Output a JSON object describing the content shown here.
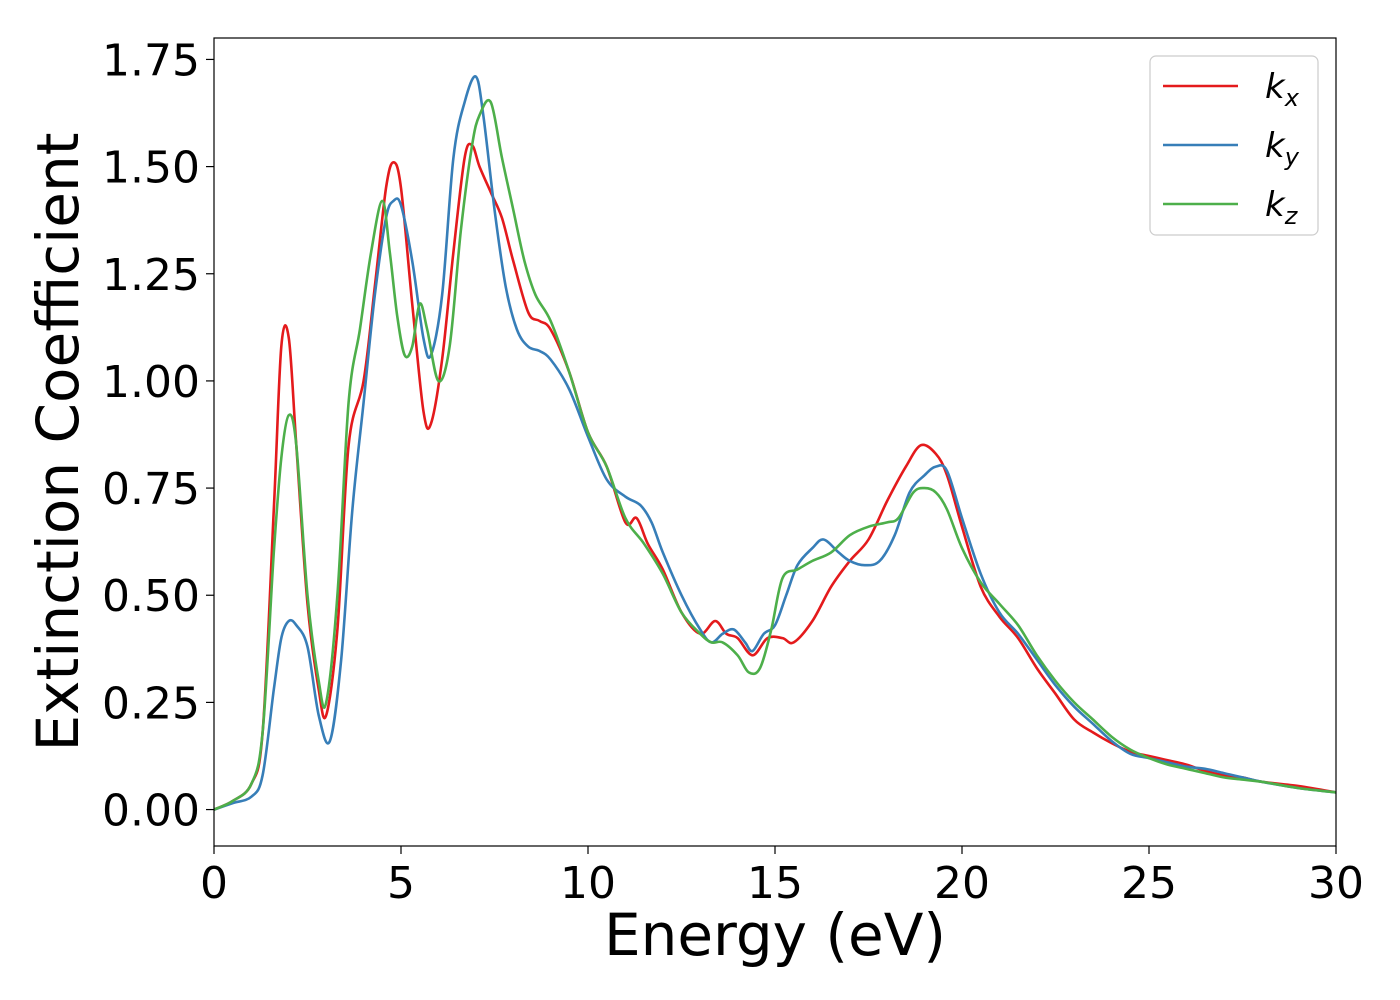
{
  "chart_data": {
    "type": "line",
    "xlabel": "Energy (eV)",
    "ylabel": "Extinction Coefficient",
    "xlim": [
      0,
      30
    ],
    "ylim": [
      -0.085,
      1.8
    ],
    "xticks": [
      0,
      5,
      10,
      15,
      20,
      25,
      30
    ],
    "yticks": [
      0.0,
      0.25,
      0.5,
      0.75,
      1.0,
      1.25,
      1.5,
      1.75
    ],
    "grid": false,
    "legend_position": "top-right",
    "series": [
      {
        "name": "k",
        "subscript": "x",
        "color": "#e41a1c",
        "x": [
          0,
          0.5,
          1.0,
          1.3,
          1.6,
          1.8,
          2.0,
          2.2,
          2.5,
          2.8,
          3.0,
          3.3,
          3.6,
          4.0,
          4.3,
          4.6,
          4.8,
          5.0,
          5.3,
          5.6,
          5.8,
          6.1,
          6.4,
          6.7,
          6.9,
          7.1,
          7.4,
          7.7,
          8.0,
          8.4,
          8.7,
          9.0,
          9.5,
          10.0,
          10.5,
          11.0,
          11.3,
          11.6,
          12.0,
          12.5,
          13.0,
          13.4,
          13.7,
          14.0,
          14.4,
          14.8,
          15.2,
          15.5,
          16.0,
          16.5,
          17.0,
          17.5,
          18.0,
          18.5,
          18.9,
          19.3,
          19.6,
          20.0,
          20.5,
          21.0,
          21.5,
          22.0,
          22.5,
          23.0,
          23.5,
          24.0,
          24.5,
          25.0,
          25.5,
          26.0,
          26.5,
          27.0,
          27.5,
          28.0,
          29.0,
          30.0
        ],
        "values": [
          0.0,
          0.02,
          0.06,
          0.18,
          0.7,
          1.08,
          1.1,
          0.85,
          0.48,
          0.28,
          0.22,
          0.42,
          0.85,
          1.0,
          1.22,
          1.45,
          1.51,
          1.45,
          1.18,
          0.93,
          0.9,
          1.05,
          1.3,
          1.52,
          1.55,
          1.5,
          1.44,
          1.38,
          1.28,
          1.16,
          1.14,
          1.12,
          1.02,
          0.88,
          0.8,
          0.67,
          0.68,
          0.62,
          0.56,
          0.46,
          0.41,
          0.44,
          0.41,
          0.4,
          0.36,
          0.4,
          0.4,
          0.39,
          0.44,
          0.52,
          0.58,
          0.63,
          0.72,
          0.8,
          0.85,
          0.83,
          0.78,
          0.66,
          0.52,
          0.45,
          0.4,
          0.33,
          0.27,
          0.21,
          0.18,
          0.155,
          0.135,
          0.125,
          0.115,
          0.105,
          0.09,
          0.08,
          0.075,
          0.065,
          0.055,
          0.04
        ]
      },
      {
        "name": "k",
        "subscript": "y",
        "color": "#377eb8",
        "x": [
          0,
          0.5,
          1.0,
          1.3,
          1.6,
          1.8,
          2.0,
          2.2,
          2.5,
          2.8,
          3.1,
          3.4,
          3.7,
          4.0,
          4.3,
          4.6,
          4.8,
          5.0,
          5.3,
          5.6,
          5.8,
          6.1,
          6.4,
          6.7,
          7.0,
          7.2,
          7.5,
          7.8,
          8.1,
          8.4,
          8.7,
          9.0,
          9.5,
          10.0,
          10.5,
          11.0,
          11.4,
          11.7,
          12.0,
          12.5,
          13.0,
          13.3,
          13.6,
          13.9,
          14.2,
          14.4,
          14.7,
          15.0,
          15.3,
          15.6,
          16.0,
          16.3,
          16.7,
          17.0,
          17.4,
          17.8,
          18.2,
          18.6,
          19.0,
          19.3,
          19.6,
          20.0,
          20.5,
          21.0,
          21.5,
          22.0,
          22.5,
          23.0,
          23.5,
          24.0,
          24.5,
          25.0,
          25.5,
          26.0,
          26.5,
          27.0,
          27.5,
          28.0,
          29.0,
          30.0
        ],
        "values": [
          0.0,
          0.015,
          0.03,
          0.08,
          0.28,
          0.4,
          0.44,
          0.43,
          0.38,
          0.22,
          0.16,
          0.35,
          0.7,
          0.95,
          1.2,
          1.38,
          1.42,
          1.41,
          1.28,
          1.1,
          1.06,
          1.2,
          1.52,
          1.65,
          1.71,
          1.62,
          1.4,
          1.22,
          1.12,
          1.08,
          1.07,
          1.05,
          0.98,
          0.87,
          0.77,
          0.73,
          0.71,
          0.67,
          0.6,
          0.5,
          0.42,
          0.39,
          0.41,
          0.42,
          0.39,
          0.37,
          0.41,
          0.43,
          0.5,
          0.57,
          0.61,
          0.63,
          0.6,
          0.58,
          0.57,
          0.58,
          0.64,
          0.74,
          0.78,
          0.8,
          0.79,
          0.68,
          0.55,
          0.46,
          0.41,
          0.35,
          0.29,
          0.24,
          0.2,
          0.16,
          0.13,
          0.12,
          0.11,
          0.1,
          0.095,
          0.085,
          0.075,
          0.065,
          0.05,
          0.04
        ]
      },
      {
        "name": "k",
        "subscript": "z",
        "color": "#4daf4a",
        "x": [
          0,
          0.5,
          1.0,
          1.3,
          1.6,
          1.8,
          2.0,
          2.2,
          2.5,
          2.8,
          3.0,
          3.3,
          3.6,
          3.9,
          4.2,
          4.5,
          4.7,
          4.9,
          5.1,
          5.3,
          5.5,
          5.7,
          6.0,
          6.3,
          6.6,
          6.9,
          7.1,
          7.4,
          7.7,
          8.0,
          8.3,
          8.6,
          9.0,
          9.5,
          10.0,
          10.5,
          11.0,
          11.5,
          12.0,
          12.5,
          13.0,
          13.3,
          13.6,
          14.0,
          14.3,
          14.6,
          14.9,
          15.2,
          15.6,
          16.0,
          16.5,
          17.0,
          17.5,
          18.0,
          18.3,
          18.7,
          19.0,
          19.3,
          19.6,
          20.0,
          20.5,
          21.0,
          21.5,
          22.0,
          22.5,
          23.0,
          23.5,
          24.0,
          24.5,
          25.0,
          25.5,
          26.0,
          26.5,
          27.0,
          27.5,
          28.0,
          29.0,
          30.0
        ],
        "values": [
          0.0,
          0.02,
          0.06,
          0.18,
          0.6,
          0.82,
          0.92,
          0.85,
          0.5,
          0.3,
          0.25,
          0.5,
          0.95,
          1.12,
          1.3,
          1.42,
          1.3,
          1.15,
          1.06,
          1.08,
          1.18,
          1.12,
          1.0,
          1.08,
          1.35,
          1.55,
          1.62,
          1.65,
          1.52,
          1.4,
          1.28,
          1.2,
          1.14,
          1.02,
          0.88,
          0.8,
          0.68,
          0.62,
          0.55,
          0.46,
          0.41,
          0.39,
          0.39,
          0.36,
          0.32,
          0.33,
          0.42,
          0.54,
          0.56,
          0.58,
          0.6,
          0.64,
          0.66,
          0.67,
          0.68,
          0.74,
          0.75,
          0.74,
          0.7,
          0.61,
          0.53,
          0.48,
          0.43,
          0.36,
          0.3,
          0.25,
          0.21,
          0.17,
          0.14,
          0.12,
          0.105,
          0.095,
          0.085,
          0.075,
          0.07,
          0.065,
          0.05,
          0.04
        ]
      }
    ]
  }
}
